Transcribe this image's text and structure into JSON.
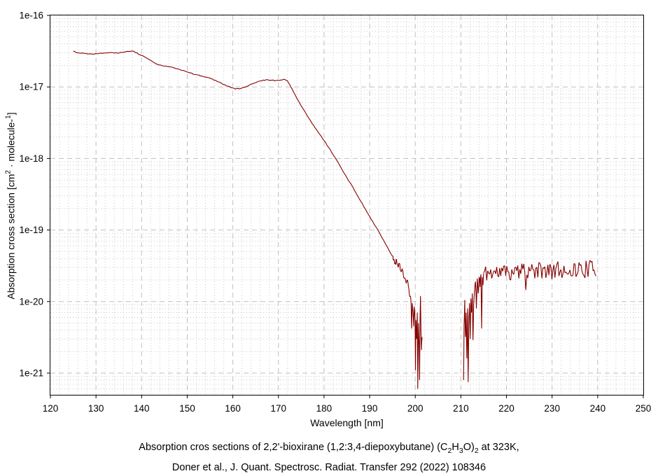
{
  "chart_data": {
    "type": "line",
    "title": "",
    "xlabel": "Wavelength [nm]",
    "ylabel_parts": [
      [
        "t",
        "Absorption cross section [cm"
      ],
      [
        "sup",
        "2"
      ],
      [
        "t",
        " · molecule-"
      ],
      [
        "sup",
        "1"
      ],
      [
        "t",
        "]"
      ]
    ],
    "x_axis": {
      "min": 120,
      "max": 250,
      "major_step": 10,
      "minor_step": 2,
      "tick_labels": [
        "120",
        "130",
        "140",
        "150",
        "160",
        "170",
        "180",
        "190",
        "200",
        "210",
        "220",
        "230",
        "240",
        "250"
      ],
      "tick_values": [
        120,
        130,
        140,
        150,
        160,
        170,
        180,
        190,
        200,
        210,
        220,
        230,
        240,
        250
      ]
    },
    "y_axis": {
      "scale": "log",
      "top_value": 1e-16,
      "bottom_value": 5e-22,
      "tick_labels": [
        "1e-16",
        "1e-17",
        "1e-18",
        "1e-19",
        "1e-20",
        "1e-21"
      ],
      "tick_exponents": [
        -16,
        -17,
        -18,
        -19,
        -20,
        -21
      ],
      "minor_mantissas": [
        2,
        3,
        4,
        5,
        6,
        7,
        8,
        9
      ]
    },
    "grid": {
      "major_on": true,
      "minor_on": true,
      "major_color": "#c0c0c0",
      "minor_color": "#c9c9c9"
    },
    "legend": "none",
    "series_name": "absorption cross section of 2,2'-bioxirane at 323K",
    "series_color": "#840000",
    "data_gap_nm": [
      201.5,
      210.6
    ],
    "segments": [
      {
        "name": "main-band",
        "jitter_log": 0.006,
        "seed": 3,
        "step_nm": 0.3,
        "points": [
          [
            125,
            3.17e-17
          ],
          [
            126,
            3e-17
          ],
          [
            127.5,
            2.95e-17
          ],
          [
            129,
            2.89e-17
          ],
          [
            130.5,
            2.92e-17
          ],
          [
            132,
            2.98e-17
          ],
          [
            133.5,
            3.02e-17
          ],
          [
            135,
            2.97e-17
          ],
          [
            136,
            3.05e-17
          ],
          [
            137,
            3.15e-17
          ],
          [
            138,
            3.18e-17
          ],
          [
            139,
            3e-17
          ],
          [
            139.6,
            2.82e-17
          ],
          [
            140.6,
            2.64e-17
          ],
          [
            141.6,
            2.42e-17
          ],
          [
            142.7,
            2.2e-17
          ],
          [
            143.6,
            2.05e-17
          ],
          [
            144.5,
            1.98e-17
          ],
          [
            145.8,
            1.93e-17
          ],
          [
            147.3,
            1.83e-17
          ],
          [
            148.9,
            1.7e-17
          ],
          [
            150.4,
            1.58e-17
          ],
          [
            151.9,
            1.49e-17
          ],
          [
            153.5,
            1.4e-17
          ],
          [
            155,
            1.33e-17
          ],
          [
            156.5,
            1.2e-17
          ],
          [
            158.1,
            1.08e-17
          ],
          [
            159.6,
            9.8e-18
          ],
          [
            160.5,
            9.35e-18
          ],
          [
            161.5,
            9.4e-18
          ],
          [
            162.7,
            9.9e-18
          ],
          [
            164.2,
            1.1e-17
          ],
          [
            165.7,
            1.2e-17
          ],
          [
            167.3,
            1.26e-17
          ],
          [
            168.5,
            1.24e-17
          ],
          [
            169.5,
            1.23e-17
          ],
          [
            170.5,
            1.25e-17
          ],
          [
            171.4,
            1.27e-17
          ],
          [
            172,
            1.21e-17
          ],
          [
            172.5,
            1.07e-17
          ],
          [
            173,
            9.4e-18
          ],
          [
            174,
            7e-18
          ],
          [
            175,
            5.4e-18
          ],
          [
            176,
            4.3e-18
          ],
          [
            177,
            3.4e-18
          ],
          [
            178,
            2.7e-18
          ],
          [
            179,
            2.2e-18
          ],
          [
            180,
            1.78e-18
          ],
          [
            181,
            1.43e-18
          ],
          [
            182,
            1.13e-18
          ],
          [
            183,
            9e-19
          ],
          [
            184,
            6.9e-19
          ],
          [
            185,
            5.4e-19
          ],
          [
            186,
            4.3e-19
          ],
          [
            187,
            3.3e-19
          ],
          [
            188,
            2.55e-19
          ],
          [
            189,
            2e-19
          ],
          [
            190,
            1.55e-19
          ],
          [
            191,
            1.2e-19
          ],
          [
            192,
            9.5e-20
          ],
          [
            193,
            7.3e-20
          ],
          [
            194,
            5.6e-20
          ],
          [
            195,
            4.3e-20
          ]
        ]
      },
      {
        "name": "deep-minimum",
        "jitter_log": 0.05,
        "seed": 17,
        "step_nm": 0.1,
        "points": [
          [
            195,
            4.3e-20
          ],
          [
            195.3,
            3.9e-20
          ],
          [
            195.6,
            3.5e-20
          ],
          [
            195.9,
            3.8e-20
          ],
          [
            196.2,
            3.1e-20
          ],
          [
            196.5,
            3.4e-20
          ],
          [
            196.8,
            2.7e-20
          ],
          [
            197.1,
            2.9e-20
          ],
          [
            197.4,
            2.3e-20
          ],
          [
            197.7,
            2.1e-20
          ],
          [
            198,
            1.8e-20
          ],
          [
            198.3,
            2e-20
          ],
          [
            198.6,
            1.5e-20
          ],
          [
            198.9,
            1.2e-20
          ],
          [
            199.1,
            9e-21
          ],
          [
            199.2,
            4.2e-21
          ],
          [
            199.35,
            9.5e-21
          ],
          [
            199.5,
            7.5e-21
          ],
          [
            199.65,
            4.5e-21
          ],
          [
            199.8,
            8.5e-21
          ],
          [
            199.95,
            6e-21
          ],
          [
            200.05,
            1.1e-21
          ],
          [
            200.15,
            5.5e-21
          ],
          [
            200.3,
            3e-21
          ],
          [
            200.45,
            7e-21
          ],
          [
            200.55,
            6e-22
          ],
          [
            200.7,
            5e-21
          ],
          [
            200.85,
            2.5e-21
          ],
          [
            200.95,
            8e-22
          ],
          [
            201.05,
            6e-21
          ],
          [
            201.15,
            1.2e-20
          ],
          [
            201.25,
            4e-21
          ],
          [
            201.35,
            2.1e-21
          ],
          [
            201.5,
            3.2e-21
          ]
        ]
      },
      {
        "name": "recovery",
        "jitter_log": 0.06,
        "seed": 29,
        "step_nm": 0.1,
        "points": [
          [
            210.6,
            8e-22
          ],
          [
            210.7,
            4.6e-21
          ],
          [
            210.85,
            1.05e-20
          ],
          [
            211,
            3.2e-21
          ],
          [
            211.15,
            7e-21
          ],
          [
            211.3,
            1.6e-21
          ],
          [
            211.45,
            8e-21
          ],
          [
            211.6,
            7.5e-22
          ],
          [
            211.75,
            6e-21
          ],
          [
            211.9,
            9.5e-21
          ],
          [
            212.05,
            3e-21
          ],
          [
            212.2,
            1.1e-20
          ],
          [
            212.35,
            7e-21
          ],
          [
            212.5,
            1.3e-20
          ],
          [
            212.65,
            2.9e-21
          ],
          [
            212.8,
            9e-21
          ],
          [
            213,
            1.4e-20
          ],
          [
            213.2,
            1.9e-20
          ],
          [
            213.4,
            8e-21
          ],
          [
            213.6,
            2.1e-20
          ],
          [
            213.8,
            1.3e-20
          ],
          [
            214,
            2.2e-20
          ],
          [
            214.2,
            1.6e-20
          ],
          [
            214.4,
            2.4e-20
          ],
          [
            214.55,
            4.2e-21
          ],
          [
            214.7,
            2.2e-20
          ],
          [
            214.85,
            1.7e-20
          ],
          [
            215,
            2.5e-20
          ]
        ]
      },
      {
        "name": "noisy-plateau",
        "plateau": {
          "nm_start": 215,
          "nm_end": 239.8,
          "log_start": -19.6,
          "log_end": -19.54,
          "amp_log": 0.125,
          "dip_prob": 0.04,
          "dip_extra": 0.3,
          "step_nm": 0.22,
          "seed": 11
        }
      }
    ]
  },
  "caption": {
    "line1_parts": [
      [
        "t",
        "Absorption cros sections of 2,2'-bioxirane (1,2:3,4-diepoxybutane) (C"
      ],
      [
        "sub",
        "2"
      ],
      [
        "t",
        "H"
      ],
      [
        "sub",
        "3"
      ],
      [
        "t",
        "O)"
      ],
      [
        "sub",
        "2"
      ],
      [
        "t",
        " at 323K,"
      ]
    ],
    "line2": "Doner et al., J. Quant. Spectrosc. Radiat. Transfer 292 (2022) 108346"
  }
}
